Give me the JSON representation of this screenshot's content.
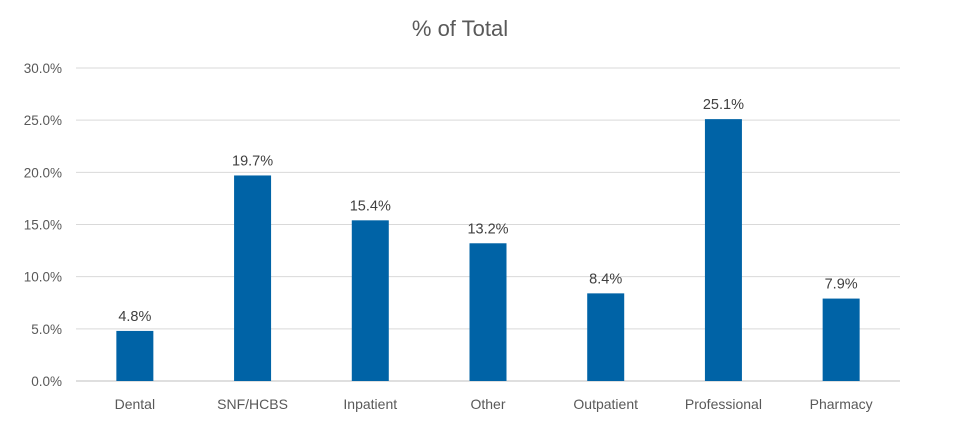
{
  "chart_data": {
    "type": "bar",
    "title": "% of Total",
    "xlabel": "",
    "ylabel": "",
    "categories": [
      "Dental",
      "SNF/HCBS",
      "Inpatient",
      "Other",
      "Outpatient",
      "Professional",
      "Pharmacy"
    ],
    "values": [
      4.8,
      19.7,
      15.4,
      13.2,
      8.4,
      25.1,
      7.9
    ],
    "data_labels": [
      "4.8%",
      "19.7%",
      "15.4%",
      "13.2%",
      "8.4%",
      "25.1%",
      "7.9%"
    ],
    "ylim": [
      0,
      30
    ],
    "yticks": [
      0,
      5,
      10,
      15,
      20,
      25,
      30
    ],
    "ytick_labels": [
      "0.0%",
      "5.0%",
      "10.0%",
      "15.0%",
      "20.0%",
      "25.0%",
      "30.0%"
    ],
    "grid": true,
    "legend": false,
    "colors": {
      "bar": "#0063a6"
    }
  }
}
